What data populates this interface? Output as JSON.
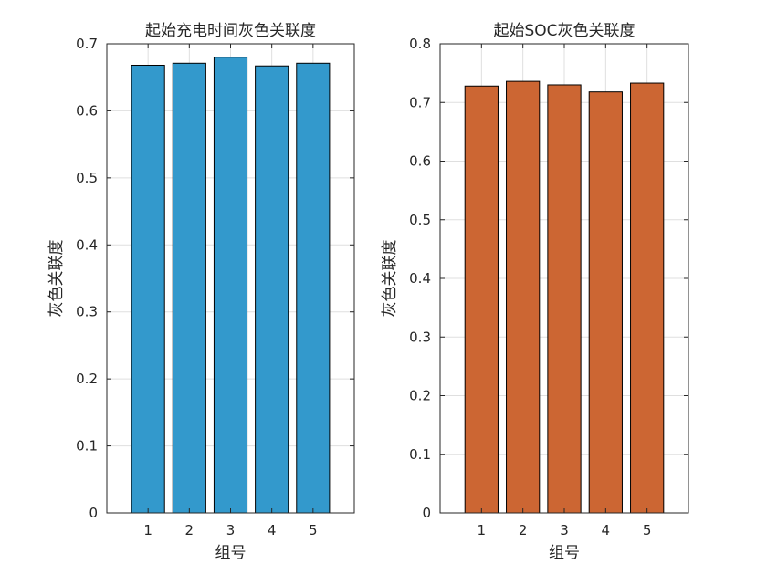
{
  "chart_data": [
    {
      "type": "bar",
      "title": "起始充电时间灰色关联度",
      "xlabel": "组号",
      "ylabel": "灰色关联度",
      "categories": [
        "1",
        "2",
        "3",
        "4",
        "5"
      ],
      "values": [
        0.668,
        0.671,
        0.68,
        0.667,
        0.671
      ],
      "ylim": [
        0,
        0.7
      ],
      "yticks": [
        "0",
        "0.1",
        "0.2",
        "0.3",
        "0.4",
        "0.5",
        "0.6",
        "0.7"
      ],
      "xlim": [
        0,
        6
      ],
      "color": "#3399cc",
      "grid": true
    },
    {
      "type": "bar",
      "title": "起始SOC灰色关联度",
      "xlabel": "组号",
      "ylabel": "灰色关联度",
      "categories": [
        "1",
        "2",
        "3",
        "4",
        "5"
      ],
      "values": [
        0.728,
        0.736,
        0.73,
        0.718,
        0.733
      ],
      "ylim": [
        0,
        0.8
      ],
      "yticks": [
        "0",
        "0.1",
        "0.2",
        "0.3",
        "0.4",
        "0.5",
        "0.6",
        "0.7",
        "0.8"
      ],
      "xlim": [
        0,
        6
      ],
      "color": "#cc6633",
      "grid": true
    }
  ]
}
